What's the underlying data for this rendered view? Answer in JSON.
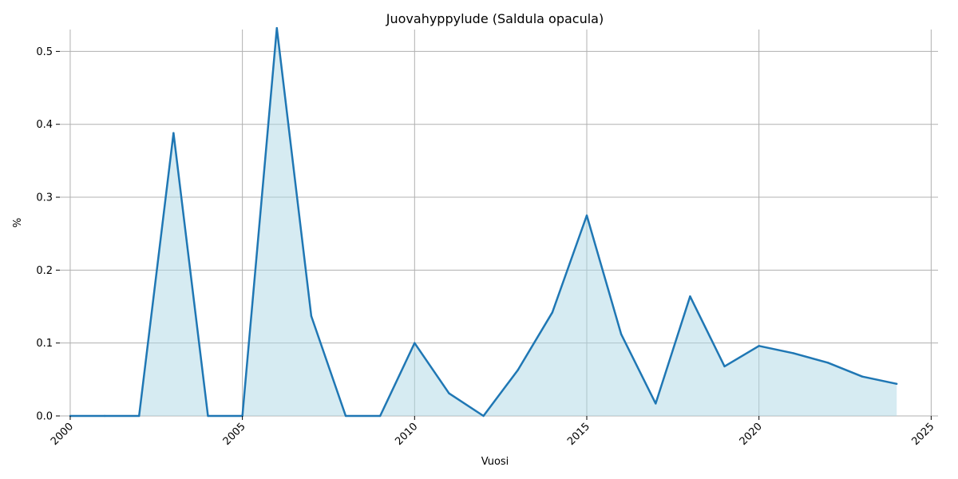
{
  "chart_data": {
    "type": "area",
    "title": "Juovahyppylude (Saldula opacula)",
    "xlabel": "Vuosi",
    "ylabel": "%",
    "xlim": [
      1999.7,
      2025.2
    ],
    "ylim": [
      0,
      0.53
    ],
    "xticks": [
      2000,
      2005,
      2010,
      2015,
      2020,
      2025
    ],
    "yticks": [
      0.0,
      0.1,
      0.2,
      0.3,
      0.4,
      0.5
    ],
    "xtick_labels": [
      "2000",
      "2005",
      "2010",
      "2015",
      "2020",
      "2025"
    ],
    "ytick_labels": [
      "0.0",
      "0.1",
      "0.2",
      "0.3",
      "0.4",
      "0.5"
    ],
    "grid": true,
    "colors": {
      "line": "#1f77b4",
      "fill": "#add8e6",
      "grid": "#b0b0b0"
    },
    "x": [
      2000,
      2001,
      2002,
      2003,
      2004,
      2005,
      2006,
      2007,
      2008,
      2009,
      2010,
      2011,
      2012,
      2013,
      2014,
      2015,
      2016,
      2017,
      2018,
      2019,
      2020,
      2021,
      2022,
      2023,
      2024
    ],
    "series": [
      {
        "values": [
          0,
          0,
          0,
          0.388,
          0,
          0,
          0.532,
          0.137,
          0,
          0,
          0.1,
          0.031,
          0,
          0.063,
          0.142,
          0.275,
          0.112,
          0.017,
          0.164,
          0.068,
          0.096,
          0.086,
          0.073,
          0.054,
          0.044
        ]
      }
    ]
  }
}
